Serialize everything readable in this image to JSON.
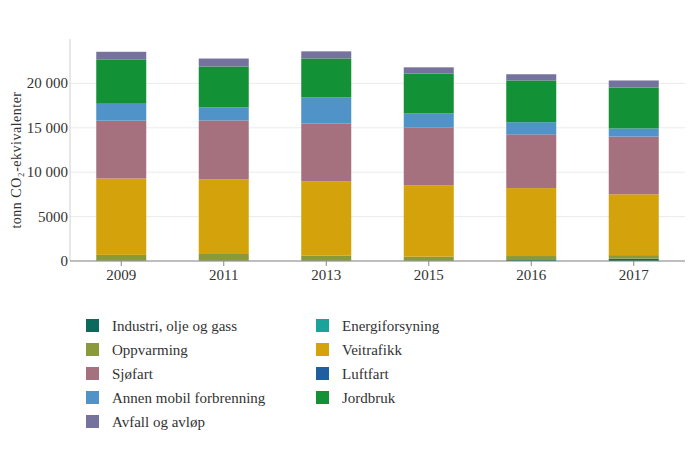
{
  "chart_data": {
    "type": "bar",
    "stacked": true,
    "y_label": "tonn CO₂-ekvivalenter",
    "categories": [
      "2009",
      "2011",
      "2013",
      "2015",
      "2016",
      "2017"
    ],
    "ylim": [
      0,
      25000
    ],
    "yticks": [
      0,
      5000,
      {
        "value": 10000,
        "label": "10 000"
      },
      {
        "value": 15000,
        "label": "15 000"
      },
      {
        "value": 20000,
        "label": "20 000"
      }
    ],
    "grid": true,
    "legend": "bottom",
    "series": [
      {
        "name": "Industri, olje og gass",
        "color": "#0b6a5c",
        "values": [
          30,
          30,
          30,
          30,
          100,
          250
        ]
      },
      {
        "name": "Energiforsyning",
        "color": "#1aa39a",
        "values": [
          10,
          10,
          10,
          10,
          10,
          10
        ]
      },
      {
        "name": "Oppvarming",
        "color": "#8a9a3b",
        "values": [
          650,
          750,
          550,
          450,
          450,
          400
        ]
      },
      {
        "name": "Veitrafikk",
        "color": "#d4a20a",
        "values": [
          8600,
          8400,
          8400,
          8050,
          7650,
          6850
        ]
      },
      {
        "name": "Sjøfart",
        "color": "#a6717e",
        "values": [
          6500,
          6630,
          6500,
          6500,
          6050,
          6500
        ]
      },
      {
        "name": "Luftfart",
        "color": "#1f5fa0",
        "values": [
          20,
          20,
          20,
          20,
          20,
          20
        ]
      },
      {
        "name": "Annen mobil forbrenning",
        "color": "#4f93c9",
        "values": [
          1900,
          1460,
          2900,
          1550,
          1350,
          900
        ]
      },
      {
        "name": "Jordbruk",
        "color": "#139136",
        "values": [
          4950,
          4600,
          4400,
          4500,
          4700,
          4600
        ]
      },
      {
        "name": "Avfall og avløp",
        "color": "#75729e",
        "values": [
          900,
          900,
          800,
          700,
          700,
          800
        ]
      }
    ]
  }
}
